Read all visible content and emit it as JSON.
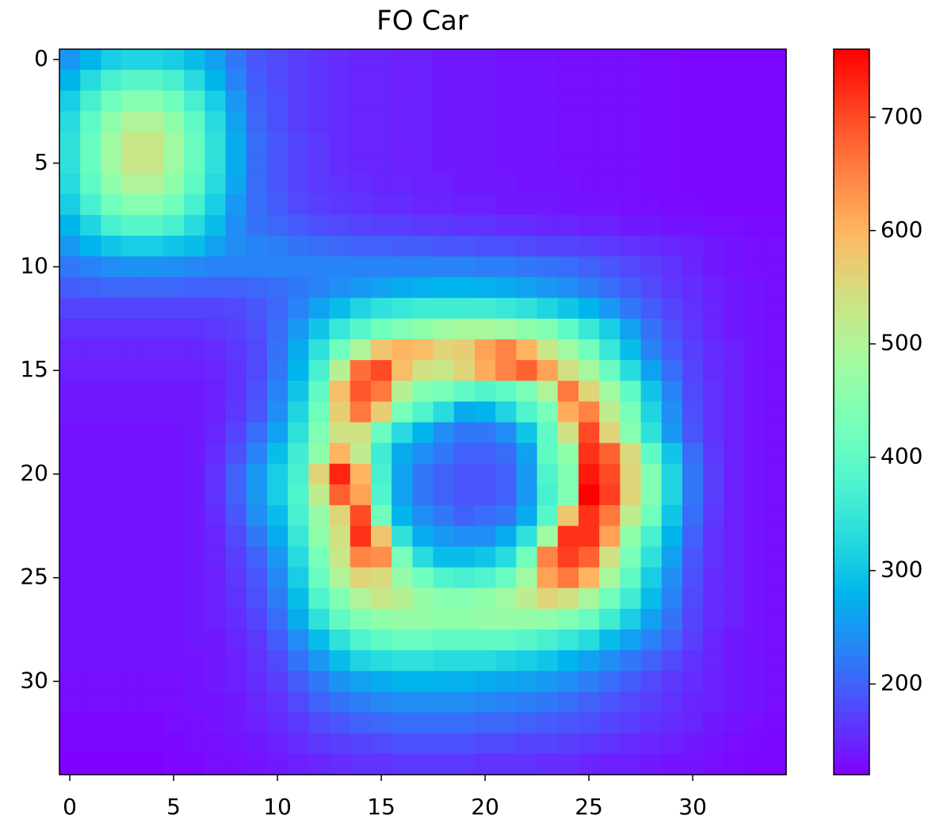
{
  "chart_data": {
    "type": "heatmap",
    "title": "FO Car",
    "colormap": "rainbow",
    "xlim": [
      -0.5,
      34.5
    ],
    "ylim": [
      -0.5,
      34.5
    ],
    "y_inverted": true,
    "xticks": [
      0,
      5,
      10,
      15,
      20,
      25,
      30
    ],
    "yticks": [
      0,
      5,
      10,
      15,
      20,
      25,
      30
    ],
    "zlim": [
      120,
      760
    ],
    "zticks": [
      200,
      300,
      400,
      500,
      600,
      700
    ],
    "z": [
      [
        250,
        280,
        310,
        320,
        320,
        310,
        290,
        260,
        220,
        190,
        180,
        170,
        160,
        155,
        150,
        150,
        145,
        145,
        140,
        140,
        140,
        135,
        135,
        135,
        130,
        130,
        130,
        130,
        128,
        128,
        125,
        125,
        125,
        125,
        125
      ],
      [
        280,
        330,
        370,
        390,
        390,
        370,
        330,
        280,
        230,
        195,
        180,
        170,
        160,
        155,
        150,
        150,
        145,
        145,
        140,
        140,
        140,
        135,
        135,
        135,
        130,
        130,
        130,
        130,
        128,
        128,
        125,
        125,
        125,
        125,
        125
      ],
      [
        310,
        370,
        420,
        450,
        450,
        420,
        370,
        310,
        250,
        200,
        185,
        170,
        160,
        155,
        150,
        150,
        145,
        145,
        140,
        140,
        140,
        135,
        135,
        135,
        130,
        130,
        130,
        130,
        128,
        128,
        125,
        125,
        125,
        125,
        125
      ],
      [
        330,
        400,
        460,
        500,
        500,
        460,
        400,
        330,
        260,
        205,
        185,
        170,
        160,
        155,
        150,
        150,
        145,
        145,
        140,
        140,
        140,
        135,
        135,
        135,
        130,
        130,
        130,
        130,
        128,
        128,
        125,
        125,
        125,
        125,
        125
      ],
      [
        340,
        410,
        480,
        530,
        530,
        480,
        410,
        340,
        270,
        210,
        190,
        175,
        165,
        155,
        150,
        150,
        145,
        145,
        140,
        140,
        140,
        135,
        135,
        135,
        130,
        130,
        130,
        130,
        128,
        128,
        125,
        125,
        125,
        125,
        125
      ],
      [
        340,
        410,
        480,
        530,
        530,
        480,
        410,
        340,
        270,
        210,
        190,
        175,
        165,
        155,
        150,
        150,
        145,
        145,
        140,
        140,
        140,
        135,
        135,
        135,
        130,
        130,
        130,
        130,
        128,
        128,
        125,
        125,
        125,
        125,
        125
      ],
      [
        330,
        400,
        460,
        500,
        500,
        460,
        400,
        330,
        265,
        210,
        190,
        175,
        165,
        160,
        155,
        150,
        150,
        145,
        145,
        140,
        140,
        140,
        135,
        135,
        135,
        130,
        130,
        130,
        128,
        128,
        125,
        125,
        125,
        125,
        125
      ],
      [
        310,
        370,
        420,
        450,
        450,
        420,
        370,
        310,
        250,
        210,
        195,
        180,
        170,
        165,
        160,
        155,
        155,
        150,
        150,
        145,
        145,
        140,
        140,
        140,
        135,
        135,
        135,
        130,
        130,
        128,
        128,
        125,
        125,
        125,
        125
      ],
      [
        280,
        320,
        370,
        390,
        390,
        370,
        330,
        290,
        240,
        215,
        205,
        195,
        185,
        180,
        175,
        170,
        170,
        165,
        165,
        160,
        160,
        155,
        155,
        150,
        150,
        145,
        145,
        140,
        140,
        135,
        135,
        130,
        130,
        128,
        128
      ],
      [
        250,
        280,
        300,
        310,
        310,
        300,
        290,
        260,
        240,
        230,
        225,
        215,
        210,
        205,
        200,
        200,
        195,
        195,
        190,
        190,
        185,
        185,
        180,
        175,
        175,
        170,
        165,
        160,
        155,
        150,
        145,
        140,
        135,
        130,
        130
      ],
      [
        220,
        230,
        240,
        245,
        245,
        240,
        235,
        230,
        230,
        230,
        230,
        230,
        230,
        230,
        230,
        230,
        230,
        230,
        230,
        230,
        225,
        225,
        220,
        215,
        210,
        200,
        190,
        180,
        170,
        160,
        150,
        140,
        135,
        130,
        130
      ],
      [
        195,
        200,
        205,
        205,
        205,
        205,
        200,
        200,
        200,
        205,
        210,
        220,
        230,
        240,
        250,
        260,
        270,
        275,
        280,
        280,
        275,
        270,
        260,
        250,
        240,
        225,
        210,
        195,
        180,
        165,
        155,
        145,
        140,
        135,
        130
      ],
      [
        175,
        175,
        175,
        175,
        175,
        175,
        175,
        175,
        180,
        190,
        205,
        230,
        260,
        290,
        320,
        340,
        350,
        360,
        360,
        360,
        360,
        350,
        340,
        320,
        300,
        280,
        250,
        220,
        195,
        175,
        160,
        150,
        140,
        135,
        130
      ],
      [
        160,
        160,
        160,
        160,
        160,
        160,
        160,
        165,
        170,
        185,
        210,
        250,
        300,
        350,
        390,
        420,
        440,
        460,
        480,
        490,
        490,
        480,
        460,
        440,
        400,
        350,
        310,
        260,
        215,
        185,
        165,
        150,
        140,
        135,
        130
      ],
      [
        150,
        150,
        150,
        150,
        150,
        150,
        150,
        155,
        165,
        180,
        215,
        270,
        340,
        420,
        500,
        580,
        600,
        590,
        560,
        570,
        620,
        650,
        600,
        530,
        480,
        420,
        350,
        290,
        230,
        195,
        170,
        155,
        145,
        135,
        130
      ],
      [
        145,
        145,
        145,
        145,
        145,
        145,
        145,
        150,
        160,
        180,
        220,
        280,
        370,
        510,
        670,
        700,
        590,
        540,
        530,
        560,
        610,
        650,
        680,
        620,
        540,
        490,
        410,
        330,
        260,
        210,
        175,
        155,
        145,
        135,
        130
      ],
      [
        140,
        140,
        140,
        140,
        140,
        140,
        140,
        145,
        160,
        185,
        230,
        300,
        400,
        590,
        690,
        660,
        510,
        440,
        430,
        400,
        380,
        400,
        430,
        500,
        660,
        560,
        480,
        400,
        300,
        230,
        180,
        160,
        145,
        135,
        130
      ],
      [
        140,
        140,
        140,
        140,
        140,
        140,
        140,
        145,
        165,
        190,
        240,
        320,
        420,
        570,
        660,
        570,
        430,
        380,
        330,
        270,
        280,
        320,
        380,
        430,
        610,
        650,
        520,
        430,
        320,
        240,
        185,
        160,
        145,
        135,
        130
      ],
      [
        135,
        135,
        135,
        135,
        135,
        135,
        140,
        150,
        175,
        210,
        260,
        340,
        440,
        540,
        540,
        410,
        330,
        280,
        240,
        220,
        220,
        240,
        300,
        400,
        540,
        700,
        560,
        450,
        340,
        250,
        190,
        160,
        145,
        135,
        130
      ],
      [
        135,
        135,
        135,
        135,
        135,
        135,
        140,
        155,
        185,
        230,
        290,
        360,
        460,
        600,
        520,
        360,
        270,
        240,
        220,
        200,
        200,
        210,
        260,
        400,
        460,
        720,
        680,
        550,
        400,
        300,
        210,
        165,
        145,
        135,
        130
      ],
      [
        135,
        135,
        135,
        135,
        135,
        135,
        140,
        160,
        200,
        250,
        310,
        370,
        560,
        730,
        600,
        370,
        260,
        220,
        200,
        190,
        190,
        200,
        250,
        380,
        440,
        740,
        700,
        560,
        440,
        320,
        220,
        170,
        145,
        135,
        130
      ],
      [
        135,
        135,
        135,
        135,
        135,
        135,
        140,
        160,
        200,
        250,
        310,
        380,
        520,
        680,
        620,
        380,
        260,
        220,
        200,
        190,
        190,
        200,
        250,
        370,
        440,
        760,
        710,
        560,
        440,
        320,
        220,
        170,
        145,
        135,
        130
      ],
      [
        135,
        135,
        135,
        135,
        135,
        135,
        140,
        155,
        190,
        240,
        290,
        370,
        470,
        560,
        700,
        420,
        280,
        240,
        220,
        200,
        210,
        220,
        270,
        390,
        580,
        720,
        660,
        520,
        420,
        300,
        210,
        165,
        145,
        135,
        130
      ],
      [
        135,
        135,
        135,
        135,
        135,
        135,
        140,
        150,
        180,
        220,
        270,
        350,
        460,
        540,
        720,
        580,
        340,
        270,
        250,
        240,
        240,
        270,
        340,
        480,
        720,
        720,
        620,
        460,
        370,
        280,
        200,
        160,
        145,
        135,
        130
      ],
      [
        135,
        135,
        135,
        135,
        135,
        135,
        140,
        150,
        170,
        200,
        250,
        330,
        430,
        530,
        650,
        640,
        430,
        330,
        290,
        290,
        300,
        330,
        420,
        650,
        710,
        680,
        540,
        430,
        340,
        260,
        190,
        160,
        145,
        135,
        130
      ],
      [
        135,
        135,
        135,
        135,
        135,
        135,
        140,
        145,
        165,
        190,
        235,
        310,
        410,
        500,
        560,
        550,
        470,
        420,
        380,
        370,
        380,
        410,
        480,
        620,
        660,
        600,
        490,
        400,
        310,
        240,
        185,
        155,
        145,
        135,
        130
      ],
      [
        135,
        135,
        135,
        135,
        135,
        135,
        140,
        145,
        160,
        185,
        225,
        290,
        380,
        440,
        500,
        530,
        510,
        470,
        450,
        450,
        460,
        480,
        520,
        560,
        540,
        490,
        420,
        360,
        290,
        230,
        180,
        155,
        145,
        135,
        130
      ],
      [
        135,
        135,
        135,
        135,
        135,
        135,
        140,
        145,
        155,
        175,
        210,
        270,
        340,
        400,
        440,
        460,
        470,
        470,
        460,
        460,
        470,
        470,
        470,
        460,
        440,
        410,
        360,
        310,
        260,
        215,
        175,
        155,
        145,
        135,
        130
      ],
      [
        135,
        135,
        135,
        135,
        135,
        135,
        140,
        140,
        150,
        165,
        195,
        240,
        290,
        340,
        380,
        400,
        410,
        410,
        400,
        400,
        400,
        400,
        390,
        370,
        350,
        330,
        290,
        260,
        230,
        200,
        170,
        150,
        140,
        135,
        130
      ],
      [
        135,
        135,
        135,
        135,
        135,
        135,
        135,
        140,
        145,
        160,
        180,
        215,
        250,
        290,
        320,
        330,
        340,
        340,
        330,
        330,
        330,
        320,
        310,
        300,
        280,
        260,
        240,
        220,
        200,
        180,
        160,
        150,
        140,
        135,
        130
      ],
      [
        130,
        130,
        130,
        130,
        130,
        130,
        135,
        140,
        145,
        155,
        170,
        195,
        220,
        245,
        260,
        270,
        280,
        280,
        275,
        275,
        270,
        265,
        260,
        250,
        240,
        225,
        210,
        195,
        180,
        165,
        155,
        145,
        140,
        135,
        130
      ],
      [
        130,
        130,
        130,
        130,
        130,
        130,
        135,
        135,
        140,
        150,
        160,
        180,
        200,
        215,
        225,
        235,
        240,
        240,
        240,
        240,
        235,
        230,
        225,
        220,
        210,
        200,
        190,
        180,
        170,
        160,
        150,
        145,
        140,
        135,
        130
      ],
      [
        125,
        125,
        125,
        125,
        125,
        130,
        130,
        135,
        140,
        145,
        155,
        165,
        180,
        190,
        200,
        205,
        210,
        210,
        210,
        210,
        205,
        205,
        200,
        195,
        190,
        185,
        175,
        170,
        160,
        155,
        150,
        140,
        135,
        130,
        128
      ],
      [
        125,
        125,
        125,
        125,
        125,
        125,
        130,
        130,
        135,
        140,
        145,
        155,
        165,
        170,
        175,
        180,
        185,
        185,
        185,
        185,
        180,
        180,
        175,
        175,
        170,
        165,
        160,
        155,
        150,
        145,
        140,
        135,
        130,
        128,
        125
      ],
      [
        120,
        120,
        120,
        120,
        120,
        125,
        125,
        130,
        130,
        135,
        140,
        145,
        150,
        155,
        160,
        160,
        165,
        165,
        165,
        165,
        160,
        160,
        160,
        155,
        155,
        150,
        145,
        145,
        140,
        135,
        135,
        130,
        128,
        125,
        125
      ]
    ]
  }
}
